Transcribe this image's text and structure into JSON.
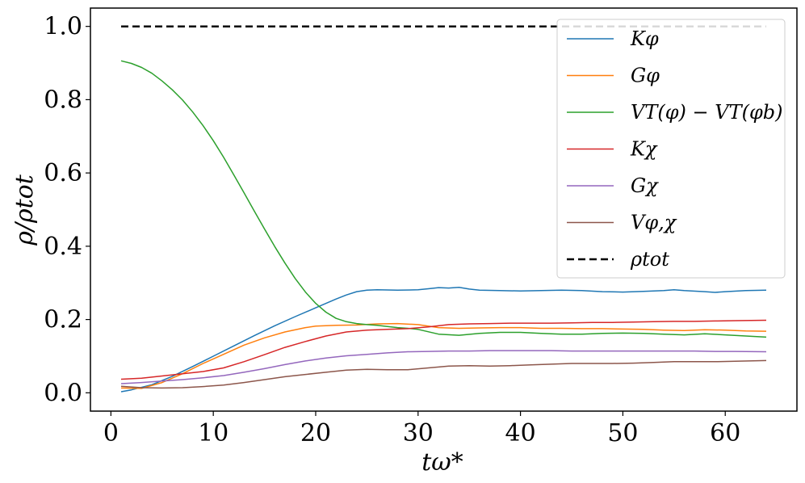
{
  "chart_data": {
    "type": "line",
    "xlabel": "tω*",
    "ylabel": "ρ/ρtot",
    "xlim": [
      -2,
      67
    ],
    "ylim": [
      -0.05,
      1.05
    ],
    "xticks": [
      0,
      10,
      20,
      30,
      40,
      50,
      60
    ],
    "xtick_labels": [
      "0",
      "10",
      "20",
      "30",
      "40",
      "50",
      "60"
    ],
    "yticks": [
      0.0,
      0.2,
      0.4,
      0.6,
      0.8,
      1.0
    ],
    "ytick_labels": [
      "0.0",
      "0.2",
      "0.4",
      "0.6",
      "0.8",
      "1.0"
    ],
    "grid": false,
    "legend_position": "top-right",
    "series": [
      {
        "name": "Kφ",
        "color": "#1f77b4",
        "style": "solid",
        "x": [
          1,
          2,
          4,
          6,
          8,
          10,
          12,
          14,
          16,
          18,
          20,
          22,
          23,
          24,
          25,
          26,
          28,
          30,
          31,
          32,
          33,
          34,
          35,
          36,
          38,
          40,
          42,
          44,
          46,
          48,
          50,
          52,
          54,
          55,
          56,
          58,
          59,
          60,
          62,
          64
        ],
        "y": [
          0.003,
          0.008,
          0.022,
          0.045,
          0.072,
          0.1,
          0.128,
          0.156,
          0.183,
          0.208,
          0.232,
          0.256,
          0.267,
          0.276,
          0.28,
          0.281,
          0.28,
          0.281,
          0.284,
          0.287,
          0.286,
          0.288,
          0.283,
          0.28,
          0.279,
          0.278,
          0.279,
          0.28,
          0.279,
          0.276,
          0.275,
          0.277,
          0.279,
          0.281,
          0.279,
          0.276,
          0.274,
          0.276,
          0.279,
          0.28
        ]
      },
      {
        "name": "Gφ",
        "color": "#ff7f0e",
        "style": "solid",
        "x": [
          1,
          3,
          5,
          7,
          9,
          11,
          13,
          15,
          17,
          19,
          20,
          22,
          24,
          26,
          28,
          30,
          32,
          34,
          36,
          38,
          40,
          42,
          44,
          46,
          48,
          50,
          52,
          54,
          56,
          58,
          60,
          62,
          64
        ],
        "y": [
          0.013,
          0.012,
          0.028,
          0.052,
          0.08,
          0.105,
          0.13,
          0.15,
          0.166,
          0.178,
          0.182,
          0.184,
          0.185,
          0.188,
          0.189,
          0.186,
          0.178,
          0.176,
          0.177,
          0.178,
          0.178,
          0.176,
          0.176,
          0.175,
          0.175,
          0.174,
          0.173,
          0.171,
          0.17,
          0.172,
          0.171,
          0.169,
          0.168
        ]
      },
      {
        "name": "VT(φ) − VT(φb)",
        "color": "#2ca02c",
        "style": "solid",
        "x": [
          1,
          2,
          3,
          4,
          5,
          6,
          7,
          8,
          9,
          10,
          11,
          12,
          13,
          14,
          15,
          16,
          17,
          18,
          19,
          20,
          21,
          22,
          23,
          24,
          25,
          26,
          27,
          28,
          29,
          30,
          32,
          34,
          36,
          38,
          40,
          42,
          44,
          46,
          48,
          50,
          52,
          54,
          56,
          58,
          60,
          62,
          64
        ],
        "y": [
          0.906,
          0.899,
          0.888,
          0.872,
          0.851,
          0.827,
          0.799,
          0.766,
          0.729,
          0.688,
          0.643,
          0.595,
          0.546,
          0.496,
          0.447,
          0.399,
          0.354,
          0.312,
          0.275,
          0.244,
          0.22,
          0.203,
          0.194,
          0.189,
          0.186,
          0.184,
          0.181,
          0.178,
          0.176,
          0.173,
          0.16,
          0.157,
          0.162,
          0.165,
          0.165,
          0.162,
          0.16,
          0.16,
          0.162,
          0.163,
          0.162,
          0.16,
          0.158,
          0.161,
          0.158,
          0.155,
          0.152
        ]
      },
      {
        "name": "Kχ",
        "color": "#d62728",
        "style": "solid",
        "x": [
          1,
          3,
          5,
          7,
          9,
          11,
          13,
          15,
          17,
          19,
          21,
          23,
          25,
          27,
          29,
          31,
          33,
          35,
          37,
          39,
          41,
          43,
          45,
          47,
          49,
          51,
          53,
          55,
          57,
          59,
          61,
          64
        ],
        "y": [
          0.037,
          0.04,
          0.046,
          0.052,
          0.058,
          0.068,
          0.085,
          0.104,
          0.124,
          0.14,
          0.155,
          0.166,
          0.171,
          0.173,
          0.175,
          0.18,
          0.186,
          0.188,
          0.189,
          0.19,
          0.19,
          0.19,
          0.191,
          0.192,
          0.192,
          0.193,
          0.194,
          0.195,
          0.195,
          0.196,
          0.197,
          0.198
        ]
      },
      {
        "name": "Gχ",
        "color": "#9467bd",
        "style": "solid",
        "x": [
          1,
          3,
          5,
          7,
          9,
          11,
          13,
          15,
          17,
          19,
          21,
          23,
          25,
          27,
          29,
          31,
          33,
          35,
          37,
          39,
          41,
          43,
          45,
          47,
          49,
          51,
          53,
          55,
          57,
          59,
          61,
          64
        ],
        "y": [
          0.025,
          0.028,
          0.032,
          0.036,
          0.041,
          0.047,
          0.056,
          0.066,
          0.077,
          0.087,
          0.095,
          0.101,
          0.105,
          0.109,
          0.112,
          0.113,
          0.114,
          0.114,
          0.115,
          0.115,
          0.115,
          0.115,
          0.114,
          0.114,
          0.114,
          0.114,
          0.114,
          0.114,
          0.114,
          0.113,
          0.113,
          0.112
        ]
      },
      {
        "name": "Vφ,χ",
        "color": "#8c564b",
        "style": "solid",
        "x": [
          1,
          3,
          5,
          7,
          9,
          11,
          13,
          15,
          17,
          19,
          21,
          23,
          25,
          27,
          29,
          31,
          33,
          35,
          37,
          39,
          41,
          43,
          45,
          47,
          49,
          51,
          53,
          55,
          57,
          59,
          61,
          64
        ],
        "y": [
          0.018,
          0.014,
          0.013,
          0.014,
          0.017,
          0.021,
          0.028,
          0.036,
          0.044,
          0.05,
          0.056,
          0.062,
          0.064,
          0.063,
          0.063,
          0.068,
          0.073,
          0.074,
          0.073,
          0.074,
          0.076,
          0.078,
          0.08,
          0.08,
          0.08,
          0.081,
          0.083,
          0.085,
          0.085,
          0.085,
          0.086,
          0.088
        ]
      },
      {
        "name": "ρtot",
        "color": "#000000",
        "style": "dashed",
        "x": [
          1,
          64
        ],
        "y": [
          1.0,
          1.0
        ]
      }
    ]
  }
}
